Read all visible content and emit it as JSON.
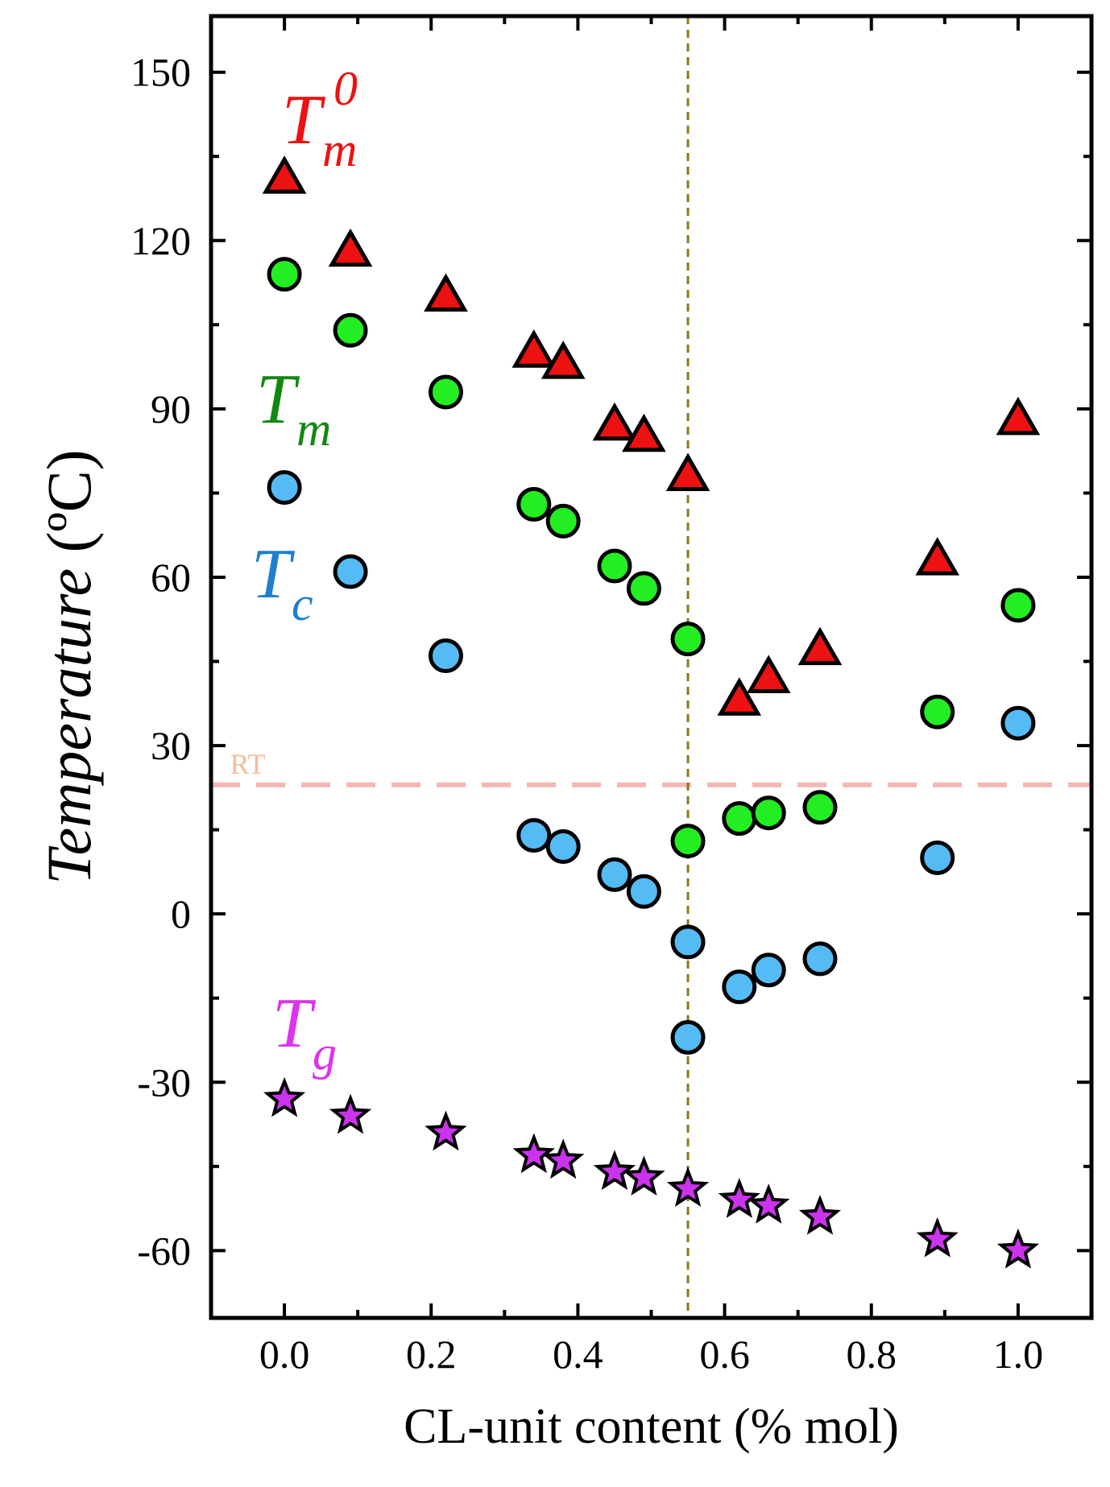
{
  "chart_data": {
    "type": "scatter",
    "title": "",
    "xlabel": "CL-unit content (% mol)",
    "ylabel": "Temperature (ºC)",
    "xlim": [
      -0.1,
      1.1
    ],
    "ylim": [
      -72,
      160
    ],
    "x_ticks": [
      0.0,
      0.2,
      0.4,
      0.6,
      0.8,
      1.0
    ],
    "x_tick_labels": [
      "0.0",
      "0.2",
      "0.4",
      "0.6",
      "0.8",
      "1.0"
    ],
    "y_ticks": [
      -60,
      -30,
      0,
      30,
      60,
      90,
      120,
      150
    ],
    "y_tick_labels": [
      "-60",
      "-30",
      "0",
      "30",
      "60",
      "90",
      "120",
      "150"
    ],
    "grid": false,
    "series": [
      {
        "name": "Tm0",
        "label_main": "T",
        "label_sub": "m",
        "label_sup": "0",
        "marker": "triangle",
        "color": "#ee1111",
        "points": [
          [
            0.0,
            131
          ],
          [
            0.09,
            118
          ],
          [
            0.22,
            110
          ],
          [
            0.34,
            100
          ],
          [
            0.38,
            98
          ],
          [
            0.45,
            87
          ],
          [
            0.49,
            85
          ],
          [
            0.55,
            78
          ],
          [
            0.62,
            38
          ],
          [
            0.66,
            42
          ],
          [
            0.73,
            47
          ],
          [
            0.89,
            63
          ],
          [
            1.0,
            88
          ]
        ]
      },
      {
        "name": "Tm",
        "label_main": "T",
        "label_sub": "m",
        "marker": "circle",
        "color": "#22ee22",
        "label_color": "#118811",
        "points": [
          [
            0.0,
            114
          ],
          [
            0.09,
            104
          ],
          [
            0.22,
            93
          ],
          [
            0.34,
            73
          ],
          [
            0.38,
            70
          ],
          [
            0.45,
            62
          ],
          [
            0.49,
            58
          ],
          [
            0.55,
            49
          ],
          [
            0.55,
            13
          ],
          [
            0.62,
            17
          ],
          [
            0.66,
            18
          ],
          [
            0.73,
            19
          ],
          [
            0.89,
            36
          ],
          [
            1.0,
            55
          ]
        ]
      },
      {
        "name": "Tc",
        "label_main": "T",
        "label_sub": "c",
        "marker": "circle",
        "color": "#55bbf4",
        "label_color": "#1f7fd0",
        "points": [
          [
            0.0,
            76
          ],
          [
            0.09,
            61
          ],
          [
            0.22,
            46
          ],
          [
            0.34,
            14
          ],
          [
            0.38,
            12
          ],
          [
            0.45,
            7
          ],
          [
            0.49,
            4
          ],
          [
            0.55,
            -5
          ],
          [
            0.55,
            -22
          ],
          [
            0.62,
            -13
          ],
          [
            0.66,
            -10
          ],
          [
            0.73,
            -8
          ],
          [
            0.89,
            10
          ],
          [
            1.0,
            34
          ]
        ]
      },
      {
        "name": "Tg",
        "label_main": "T",
        "label_sub": "g",
        "marker": "star",
        "color": "#cc33ee",
        "label_color": "#dd33ee",
        "points": [
          [
            0.0,
            -33
          ],
          [
            0.09,
            -36
          ],
          [
            0.22,
            -39
          ],
          [
            0.34,
            -43
          ],
          [
            0.38,
            -44
          ],
          [
            0.45,
            -46
          ],
          [
            0.49,
            -47
          ],
          [
            0.55,
            -49
          ],
          [
            0.62,
            -51
          ],
          [
            0.66,
            -52
          ],
          [
            0.73,
            -54
          ],
          [
            0.89,
            -58
          ],
          [
            1.0,
            -60
          ]
        ]
      }
    ],
    "reference_lines": [
      {
        "orientation": "horizontal",
        "value": 23,
        "label": "RT",
        "style": "dashed",
        "color": "#f4b8b4",
        "label_color": "#f4bc9c"
      },
      {
        "orientation": "vertical",
        "value": 0.55,
        "label": "",
        "style": "dashed",
        "color": "#8a7a10"
      }
    ]
  }
}
